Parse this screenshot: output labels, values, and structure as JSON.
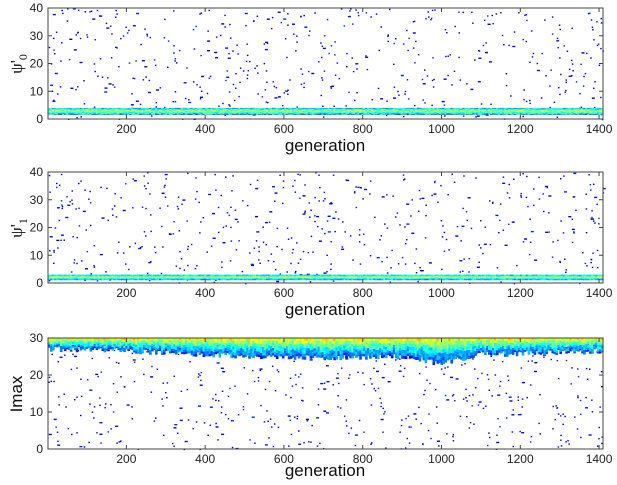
{
  "figure": {
    "panels": [
      {
        "id": "psi0",
        "ylabel_main": "ψ'",
        "ylabel_sub": "0",
        "xlabel": "generation"
      },
      {
        "id": "psi1",
        "ylabel_main": "ψ'",
        "ylabel_sub": "1",
        "xlabel": "generation"
      },
      {
        "id": "imax",
        "ylabel_main": "Imax",
        "ylabel_sub": "",
        "xlabel": "generation"
      }
    ]
  },
  "chart_data": [
    {
      "type": "heatmap",
      "title": "",
      "xlabel": "generation",
      "ylabel": "ψ'0",
      "xlim": [
        1,
        1410
      ],
      "ylim": [
        0,
        40
      ],
      "xticks": [
        200,
        400,
        600,
        800,
        1000,
        1200,
        1400
      ],
      "yticks": [
        0,
        10,
        20,
        30,
        40
      ],
      "xticklabels": [
        "200",
        "400",
        "600",
        "800",
        "1000",
        "1200",
        "1400"
      ],
      "yticklabels": [
        "0",
        "10",
        "20",
        "30",
        "40"
      ],
      "colormap": "jet",
      "background": "#ffffff",
      "dense_band": {
        "y_low": 1.5,
        "y_high": 4,
        "intensity": "high"
      },
      "scatter_density": "sparse",
      "grid": false
    },
    {
      "type": "heatmap",
      "title": "",
      "xlabel": "generation",
      "ylabel": "ψ'1",
      "xlim": [
        1,
        1410
      ],
      "ylim": [
        0,
        40
      ],
      "xticks": [
        200,
        400,
        600,
        800,
        1000,
        1200,
        1400
      ],
      "yticks": [
        0,
        10,
        20,
        30,
        40
      ],
      "xticklabels": [
        "200",
        "400",
        "600",
        "800",
        "1000",
        "1200",
        "1400"
      ],
      "yticklabels": [
        "0",
        "10",
        "20",
        "30",
        "40"
      ],
      "colormap": "jet",
      "background": "#ffffff",
      "dense_band": {
        "y_low": 1,
        "y_high": 3,
        "intensity": "high"
      },
      "scatter_density": "sparse",
      "grid": false
    },
    {
      "type": "heatmap",
      "title": "",
      "xlabel": "generation",
      "ylabel": "Imax",
      "xlim": [
        1,
        1410
      ],
      "ylim": [
        0,
        30
      ],
      "xticks": [
        200,
        400,
        600,
        800,
        1000,
        1200,
        1400
      ],
      "yticks": [
        0,
        10,
        20,
        30
      ],
      "xticklabels": [
        "200",
        "400",
        "600",
        "800",
        "1000",
        "1200",
        "1400"
      ],
      "yticklabels": [
        "0",
        "10",
        "20",
        "30"
      ],
      "colormap": "jet",
      "background": "#ffffff",
      "dense_band": {
        "y_low": 25,
        "y_high": 30,
        "intensity": "high",
        "lower_edge_by_generation": [
          [
            1,
            27
          ],
          [
            200,
            26.5
          ],
          [
            300,
            26
          ],
          [
            500,
            25
          ],
          [
            700,
            24.5
          ],
          [
            900,
            25
          ],
          [
            1000,
            23
          ],
          [
            1100,
            25.5
          ],
          [
            1300,
            26
          ],
          [
            1410,
            26.5
          ]
        ]
      },
      "scatter_density": "sparse",
      "grid": false
    }
  ]
}
